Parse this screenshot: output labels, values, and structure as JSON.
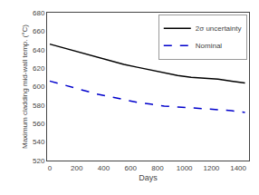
{
  "chart_data": {
    "type": "line",
    "xlabel": "Days",
    "ylabel": "Maximum cladding mid-wall temp. (°C)",
    "x": [
      0,
      50,
      150,
      250,
      350,
      450,
      550,
      650,
      750,
      850,
      950,
      1050,
      1150,
      1250,
      1350,
      1450
    ],
    "series": [
      {
        "name": "2σ uncertainty",
        "color": "#000000",
        "line_style": "solid",
        "values": [
          646,
          644,
          640,
          636,
          632,
          628,
          624,
          621,
          618,
          615,
          612,
          610,
          609,
          608,
          606,
          604
        ]
      },
      {
        "name": "Nominal",
        "color": "#0000cc",
        "line_style": "dashed",
        "values": [
          606,
          604,
          600,
          596,
          592,
          589,
          586,
          583,
          581,
          579,
          578,
          577,
          576,
          575,
          574,
          572
        ]
      }
    ],
    "xlim": [
      -20,
      1480
    ],
    "ylim": [
      520,
      680
    ],
    "xticks": [
      0,
      200,
      400,
      600,
      800,
      1000,
      1200,
      1400
    ],
    "yticks": [
      520,
      540,
      560,
      580,
      600,
      620,
      640,
      660,
      680
    ],
    "grid": false,
    "legend": "upper right"
  }
}
